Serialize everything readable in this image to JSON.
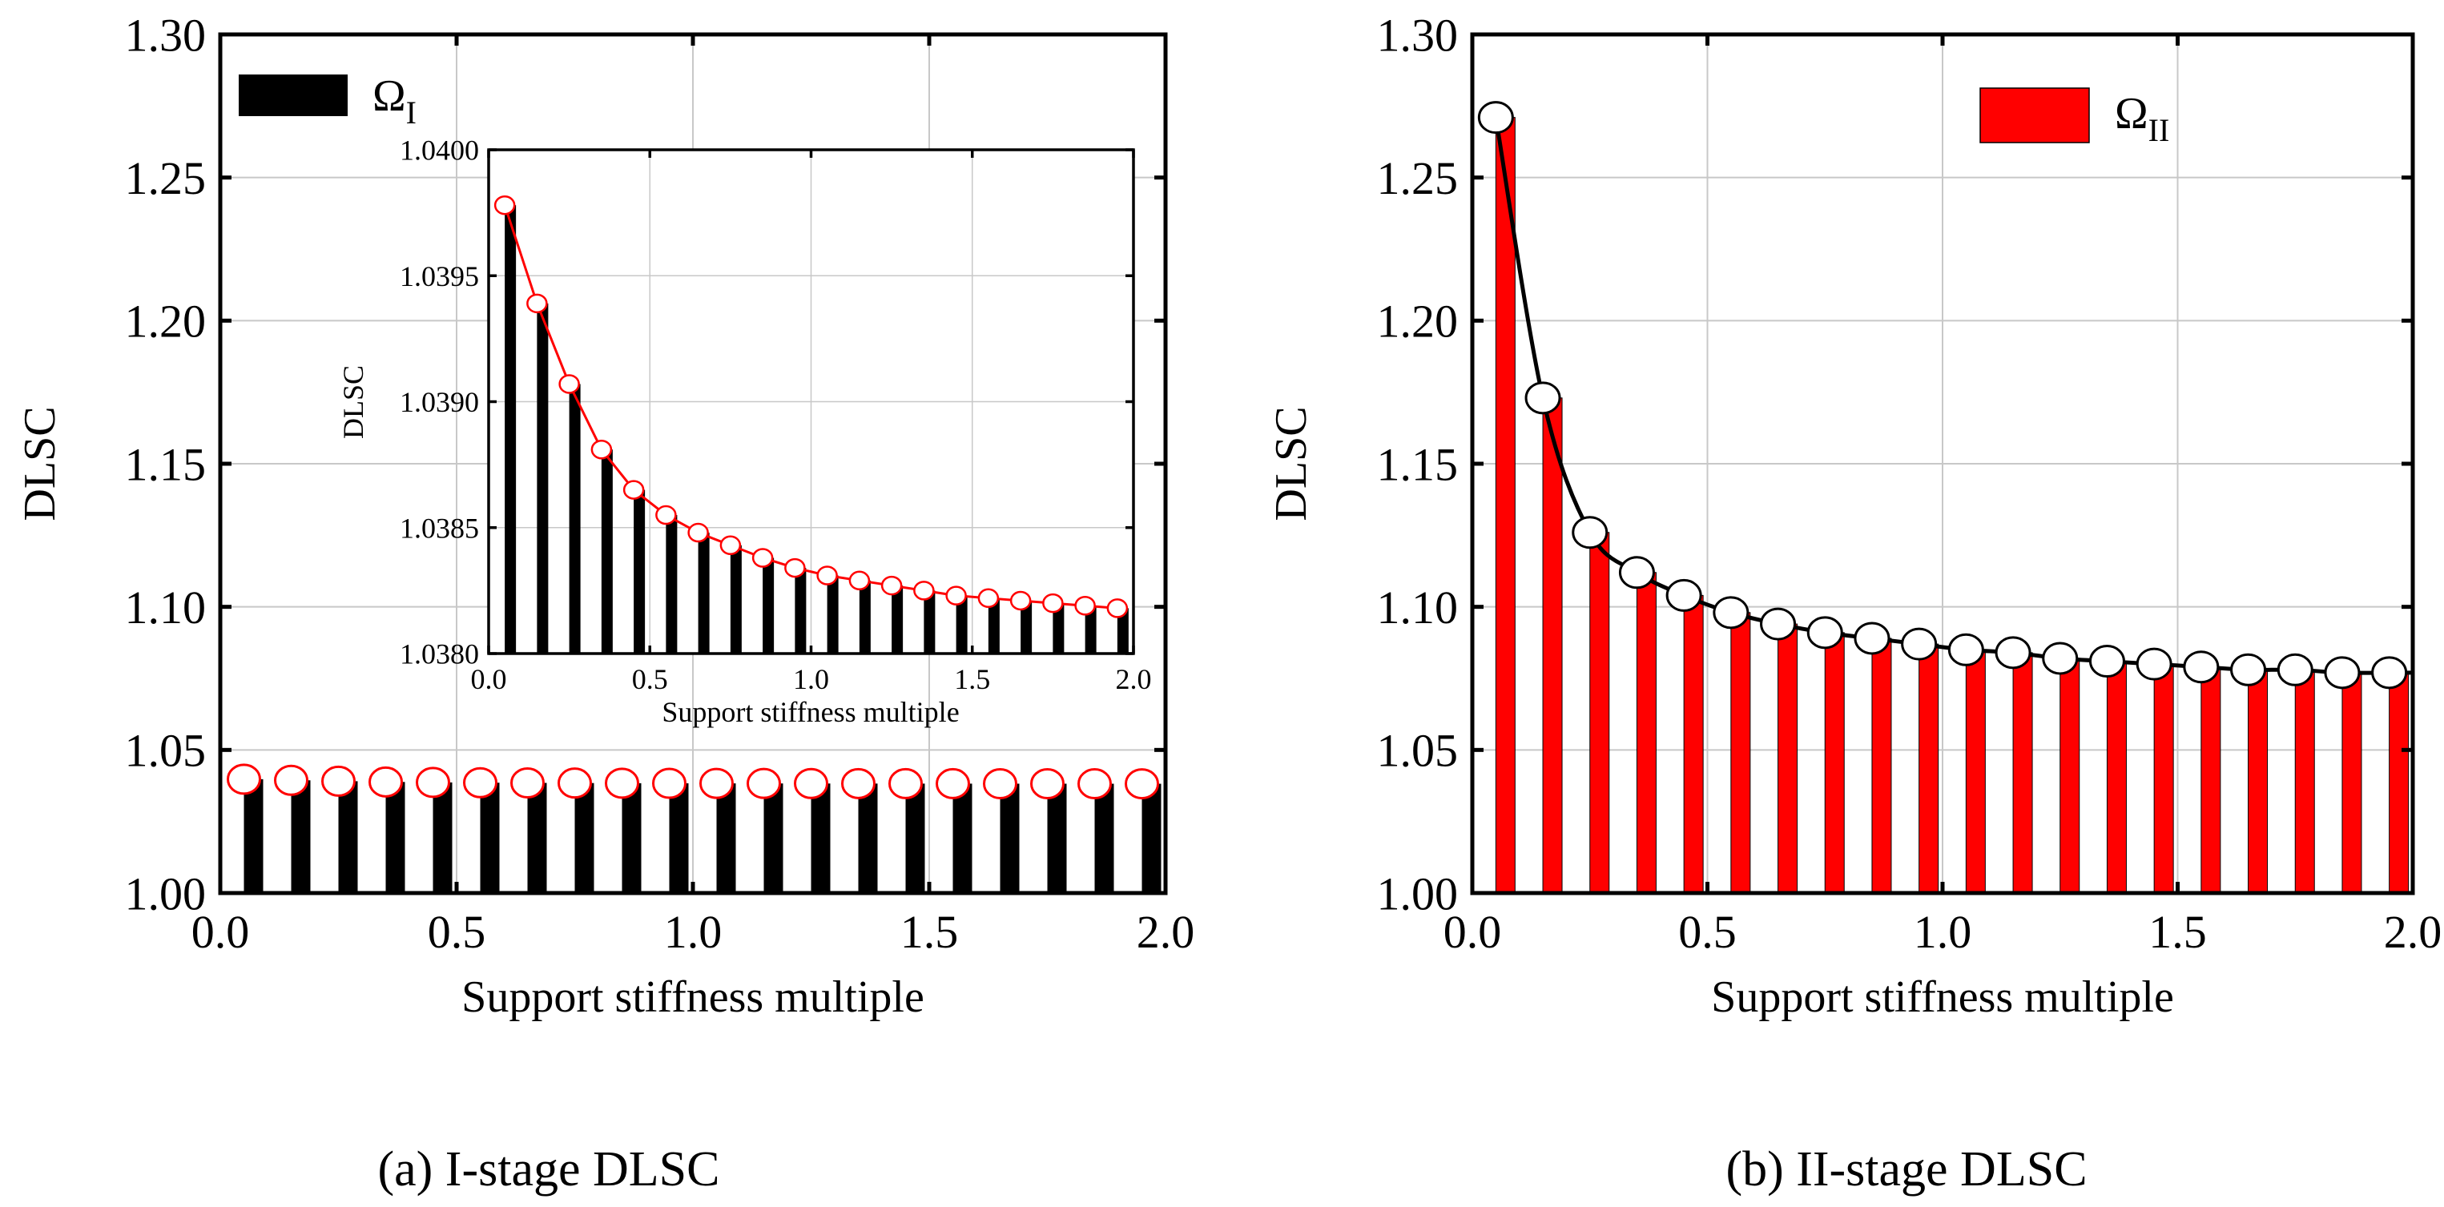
{
  "chart_data": [
    {
      "type": "bar",
      "panel": "a",
      "caption": "(a) I-stage DLSC",
      "xlabel": "Support stiffness multiple",
      "ylabel": "DLSC",
      "xlim": [
        0,
        2.0
      ],
      "ylim": [
        1.0,
        1.3
      ],
      "xticks": [
        "0.0",
        "0.5",
        "1.0",
        "1.5",
        "2.0"
      ],
      "yticks": [
        "1.00",
        "1.05",
        "1.10",
        "1.15",
        "1.20",
        "1.25",
        "1.30"
      ],
      "grid": true,
      "legend": {
        "label": "Ω",
        "subscript": "I",
        "position": "top-left",
        "color": "#000000"
      },
      "bar_color": "#000000",
      "marker_edge_color": "#ff0000",
      "x": [
        0.05,
        0.15,
        0.25,
        0.35,
        0.45,
        0.55,
        0.65,
        0.75,
        0.85,
        0.95,
        1.05,
        1.15,
        1.25,
        1.35,
        1.45,
        1.55,
        1.65,
        1.75,
        1.85,
        1.95
      ],
      "values": [
        1.03978,
        1.03939,
        1.03907,
        1.03881,
        1.03865,
        1.03855,
        1.03848,
        1.03843,
        1.03838,
        1.03834,
        1.03831,
        1.03829,
        1.03827,
        1.03825,
        1.03823,
        1.03822,
        1.03821,
        1.0382,
        1.03819,
        1.03818
      ],
      "inset": {
        "xlabel": "Support stiffness multiple",
        "ylabel": "DLSC",
        "xlim": [
          0,
          2.0
        ],
        "ylim": [
          1.038,
          1.04
        ],
        "xticks": [
          "0.0",
          "0.5",
          "1.0",
          "1.5",
          "2.0"
        ],
        "yticks": [
          "1.0380",
          "1.0385",
          "1.0390",
          "1.0395",
          "1.0400"
        ],
        "line_color": "#ff0000"
      }
    },
    {
      "type": "bar",
      "panel": "b",
      "caption": "(b) II-stage DLSC",
      "xlabel": "Support stiffness multiple",
      "ylabel": "DLSC",
      "xlim": [
        0,
        2.0
      ],
      "ylim": [
        1.0,
        1.3
      ],
      "xticks": [
        "0.0",
        "0.5",
        "1.0",
        "1.5",
        "2.0"
      ],
      "yticks": [
        "1.00",
        "1.05",
        "1.10",
        "1.15",
        "1.20",
        "1.25",
        "1.30"
      ],
      "grid": true,
      "legend": {
        "label": "Ω",
        "subscript": "II",
        "position": "top-right",
        "color": "#ff0000"
      },
      "bar_color": "#ff0000",
      "line_color": "#000000",
      "x": [
        0.05,
        0.15,
        0.25,
        0.35,
        0.45,
        0.55,
        0.65,
        0.75,
        0.85,
        0.95,
        1.05,
        1.15,
        1.25,
        1.35,
        1.45,
        1.55,
        1.65,
        1.75,
        1.85,
        1.95
      ],
      "values": [
        1.271,
        1.173,
        1.126,
        1.112,
        1.104,
        1.098,
        1.094,
        1.091,
        1.089,
        1.087,
        1.085,
        1.084,
        1.082,
        1.081,
        1.08,
        1.079,
        1.078,
        1.078,
        1.077,
        1.077
      ]
    }
  ]
}
